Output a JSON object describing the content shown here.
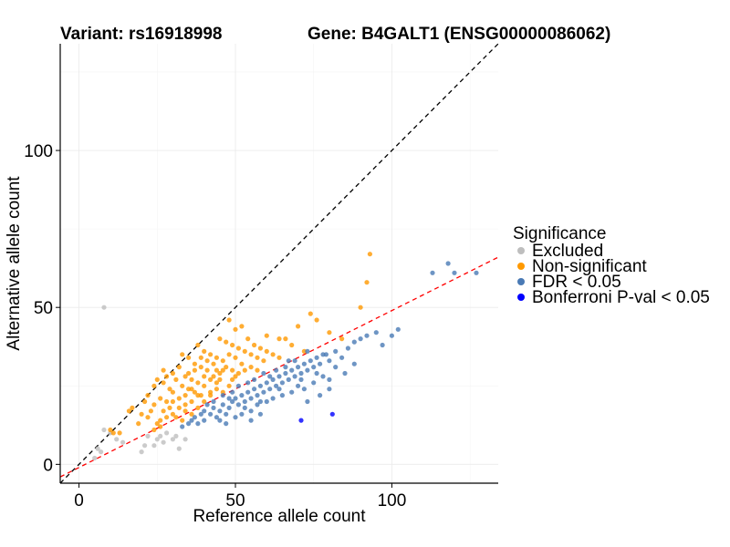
{
  "chart_data": {
    "type": "scatter",
    "title_left": "Variant: rs16918998",
    "title_right": "Gene: B4GALT1 (ENSG00000086062)",
    "xlabel": "Reference allele count",
    "ylabel": "Alternative allele count",
    "xlim": [
      -6,
      134
    ],
    "ylim": [
      -6,
      134
    ],
    "xticks": [
      0,
      50,
      100
    ],
    "yticks": [
      0,
      50,
      100
    ],
    "grid": true,
    "reference_lines": [
      {
        "name": "identity",
        "slope": 1,
        "intercept": 0,
        "color": "#000000",
        "dash": "dashed"
      },
      {
        "name": "fit",
        "slope": 0.5,
        "intercept": -1,
        "color": "#ff0000",
        "dash": "dashed"
      }
    ],
    "legend": {
      "title": "Significance",
      "position": "right",
      "items": [
        {
          "label": "Excluded",
          "color": "#bebebe"
        },
        {
          "label": "Non-significant",
          "color": "#ff9900"
        },
        {
          "label": "FDR < 0.05",
          "color": "#4a7ab5"
        },
        {
          "label": "Bonferroni P-val < 0.05",
          "color": "#0000ff"
        }
      ]
    },
    "series": [
      {
        "name": "Excluded",
        "color": "#bebebe",
        "points": [
          [
            8,
            50
          ],
          [
            8,
            11
          ],
          [
            10,
            10
          ],
          [
            12,
            8
          ],
          [
            14,
            7
          ],
          [
            6,
            5
          ],
          [
            7,
            4
          ],
          [
            5,
            2
          ],
          [
            20,
            4
          ],
          [
            21,
            6
          ],
          [
            22,
            9
          ],
          [
            25,
            8
          ],
          [
            24,
            6
          ],
          [
            26,
            9
          ],
          [
            27,
            7
          ],
          [
            28,
            10
          ],
          [
            30,
            8
          ],
          [
            31,
            9
          ],
          [
            32,
            5
          ],
          [
            34,
            8
          ]
        ]
      },
      {
        "name": "Non-significant",
        "color": "#ff9900",
        "points": [
          [
            10,
            11
          ],
          [
            11,
            10
          ],
          [
            13,
            10
          ],
          [
            16,
            17
          ],
          [
            17,
            18
          ],
          [
            19,
            13
          ],
          [
            20,
            16
          ],
          [
            22,
            15
          ],
          [
            23,
            17
          ],
          [
            25,
            13
          ],
          [
            26,
            14
          ],
          [
            27,
            17
          ],
          [
            29,
            18
          ],
          [
            30,
            16
          ],
          [
            31,
            15
          ],
          [
            33,
            14
          ],
          [
            21,
            20
          ],
          [
            22,
            22
          ],
          [
            24,
            19
          ],
          [
            26,
            21
          ],
          [
            28,
            20
          ],
          [
            30,
            23
          ],
          [
            32,
            21
          ],
          [
            34,
            19
          ],
          [
            36,
            20
          ],
          [
            24,
            25
          ],
          [
            25,
            27
          ],
          [
            27,
            26
          ],
          [
            29,
            24
          ],
          [
            31,
            27
          ],
          [
            33,
            25
          ],
          [
            35,
            24
          ],
          [
            37,
            23
          ],
          [
            39,
            22
          ],
          [
            27,
            30
          ],
          [
            28,
            28
          ],
          [
            30,
            29
          ],
          [
            32,
            31
          ],
          [
            34,
            28
          ],
          [
            36,
            27
          ],
          [
            38,
            26
          ],
          [
            40,
            28
          ],
          [
            42,
            27
          ],
          [
            44,
            26
          ],
          [
            33,
            35
          ],
          [
            35,
            34
          ],
          [
            37,
            32
          ],
          [
            39,
            31
          ],
          [
            41,
            30
          ],
          [
            43,
            32
          ],
          [
            45,
            29
          ],
          [
            47,
            31
          ],
          [
            49,
            30
          ],
          [
            38,
            38
          ],
          [
            40,
            36
          ],
          [
            42,
            35
          ],
          [
            44,
            34
          ],
          [
            46,
            33
          ],
          [
            48,
            35
          ],
          [
            50,
            34
          ],
          [
            52,
            32
          ],
          [
            45,
            40
          ],
          [
            47,
            39
          ],
          [
            49,
            38
          ],
          [
            51,
            37
          ],
          [
            53,
            36
          ],
          [
            55,
            35
          ],
          [
            57,
            34
          ],
          [
            59,
            33
          ],
          [
            50,
            43
          ],
          [
            54,
            40
          ],
          [
            56,
            38
          ],
          [
            58,
            37
          ],
          [
            60,
            36
          ],
          [
            62,
            35
          ],
          [
            64,
            34
          ],
          [
            48,
            46
          ],
          [
            52,
            44
          ],
          [
            60,
            41
          ],
          [
            64,
            40
          ],
          [
            70,
            44
          ],
          [
            74,
            48
          ],
          [
            76,
            46
          ],
          [
            80,
            42
          ],
          [
            84,
            40
          ],
          [
            90,
            50
          ],
          [
            92,
            58
          ],
          [
            93,
            67
          ],
          [
            66,
            40
          ],
          [
            68,
            38
          ],
          [
            72,
            36
          ],
          [
            40,
            20
          ],
          [
            42,
            22
          ],
          [
            44,
            24
          ],
          [
            46,
            23
          ],
          [
            36,
            16
          ],
          [
            38,
            18
          ],
          [
            28,
            15
          ],
          [
            26,
            12
          ],
          [
            24,
            11
          ],
          [
            35,
            29
          ],
          [
            37,
            30
          ],
          [
            43,
            28
          ],
          [
            46,
            30
          ],
          [
            49,
            27
          ],
          [
            51,
            29
          ],
          [
            53,
            30
          ],
          [
            55,
            31
          ],
          [
            57,
            30
          ],
          [
            34,
            22
          ],
          [
            36,
            24
          ],
          [
            38,
            22
          ],
          [
            40,
            25
          ],
          [
            42,
            23
          ],
          [
            30,
            20
          ],
          [
            32,
            18
          ],
          [
            34,
            17
          ],
          [
            50,
            28
          ],
          [
            48,
            25
          ],
          [
            45,
            27
          ],
          [
            44,
            30
          ],
          [
            41,
            33
          ],
          [
            39,
            34
          ]
        ]
      },
      {
        "name": "FDR < 0.05",
        "color": "#4a7ab5",
        "points": [
          [
            33,
            12
          ],
          [
            35,
            13
          ],
          [
            37,
            15
          ],
          [
            38,
            13
          ],
          [
            40,
            14
          ],
          [
            40,
            17
          ],
          [
            42,
            16
          ],
          [
            43,
            18
          ],
          [
            44,
            15
          ],
          [
            45,
            17
          ],
          [
            46,
            19
          ],
          [
            47,
            16
          ],
          [
            48,
            18
          ],
          [
            49,
            20
          ],
          [
            50,
            21
          ],
          [
            51,
            19
          ],
          [
            52,
            22
          ],
          [
            53,
            20
          ],
          [
            54,
            23
          ],
          [
            55,
            21
          ],
          [
            56,
            24
          ],
          [
            57,
            22
          ],
          [
            58,
            25
          ],
          [
            59,
            23
          ],
          [
            60,
            26
          ],
          [
            61,
            24
          ],
          [
            62,
            27
          ],
          [
            63,
            25
          ],
          [
            64,
            28
          ],
          [
            65,
            26
          ],
          [
            66,
            29
          ],
          [
            67,
            27
          ],
          [
            68,
            30
          ],
          [
            69,
            28
          ],
          [
            70,
            31
          ],
          [
            71,
            29
          ],
          [
            72,
            32
          ],
          [
            73,
            30
          ],
          [
            74,
            33
          ],
          [
            75,
            31
          ],
          [
            76,
            34
          ],
          [
            77,
            32
          ],
          [
            78,
            35
          ],
          [
            80,
            33
          ],
          [
            82,
            36
          ],
          [
            84,
            34
          ],
          [
            86,
            37
          ],
          [
            88,
            39
          ],
          [
            90,
            40
          ],
          [
            92,
            41
          ],
          [
            95,
            42
          ],
          [
            97,
            38
          ],
          [
            100,
            41
          ],
          [
            102,
            43
          ],
          [
            113,
            61
          ],
          [
            118,
            64
          ],
          [
            120,
            61
          ],
          [
            127,
            61
          ],
          [
            53,
            18
          ],
          [
            55,
            17
          ],
          [
            57,
            19
          ],
          [
            60,
            20
          ],
          [
            62,
            21
          ],
          [
            65,
            22
          ],
          [
            68,
            23
          ],
          [
            70,
            25
          ],
          [
            72,
            24
          ],
          [
            75,
            26
          ],
          [
            78,
            28
          ],
          [
            80,
            27
          ],
          [
            45,
            14
          ],
          [
            47,
            13
          ],
          [
            50,
            15
          ],
          [
            52,
            16
          ],
          [
            55,
            14
          ],
          [
            58,
            16
          ],
          [
            43,
            20
          ],
          [
            46,
            22
          ],
          [
            49,
            23
          ],
          [
            51,
            25
          ],
          [
            54,
            26
          ],
          [
            56,
            27
          ],
          [
            59,
            29
          ],
          [
            61,
            28
          ],
          [
            63,
            30
          ],
          [
            66,
            31
          ],
          [
            69,
            33
          ],
          [
            58,
            20
          ],
          [
            64,
            24
          ],
          [
            71,
            27
          ],
          [
            76,
            29
          ],
          [
            82,
            31
          ],
          [
            85,
            29
          ],
          [
            88,
            32
          ],
          [
            79,
            35
          ],
          [
            67,
            33
          ],
          [
            73,
            36
          ],
          [
            48,
            21
          ],
          [
            41,
            19
          ],
          [
            39,
            16
          ],
          [
            36,
            14
          ],
          [
            73,
            20
          ],
          [
            77,
            22
          ],
          [
            80,
            24
          ]
        ]
      },
      {
        "name": "Bonferroni P-val < 0.05",
        "color": "#0000ff",
        "points": [
          [
            71,
            14
          ],
          [
            81,
            16
          ]
        ]
      }
    ]
  }
}
